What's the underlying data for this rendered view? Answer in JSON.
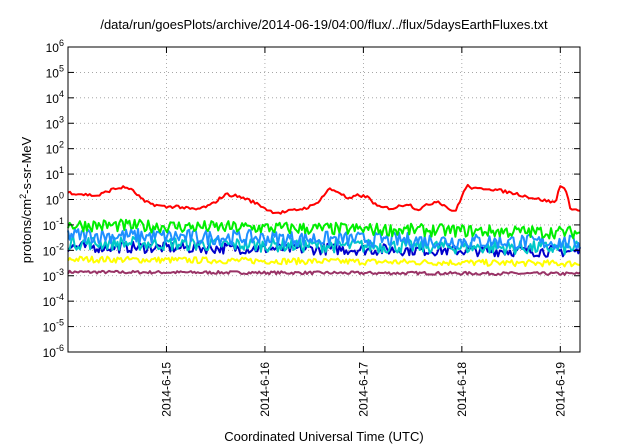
{
  "chart_data": {
    "type": "line",
    "title": "/data/run/goesPlots/archive/2014-06-19/04:00/flux/../flux/5daysEarthFluxes.txt",
    "xlabel": "Coordinated Universal Time (UTC)",
    "ylabel_parts": {
      "pre": "protons/cm",
      "sup": "2",
      "post": "-s-sr-MeV"
    },
    "y_scale": "log",
    "ylim": [
      1e-06,
      1000000.0
    ],
    "y_ticks": [
      {
        "base": "10",
        "exp": "-6",
        "value": 1e-06
      },
      {
        "base": "10",
        "exp": "-5",
        "value": 1e-05
      },
      {
        "base": "10",
        "exp": "-4",
        "value": 0.0001
      },
      {
        "base": "10",
        "exp": "-3",
        "value": 0.001
      },
      {
        "base": "10",
        "exp": "-2",
        "value": 0.01
      },
      {
        "base": "10",
        "exp": "-1",
        "value": 0.1
      },
      {
        "base": "10",
        "exp": "0",
        "value": 1
      },
      {
        "base": "10",
        "exp": "1",
        "value": 10.0
      },
      {
        "base": "10",
        "exp": "2",
        "value": 100.0
      },
      {
        "base": "10",
        "exp": "3",
        "value": 1000.0
      },
      {
        "base": "10",
        "exp": "4",
        "value": 10000.0
      },
      {
        "base": "10",
        "exp": "5",
        "value": 100000.0
      },
      {
        "base": "10",
        "exp": "6",
        "value": 1000000.0
      }
    ],
    "x_range_days": [
      14.0,
      19.2
    ],
    "x_ticks": [
      {
        "label": "2014-6-15",
        "day": 15
      },
      {
        "label": "2014-6-16",
        "day": 16
      },
      {
        "label": "2014-6-17",
        "day": 17
      },
      {
        "label": "2014-6-18",
        "day": 18
      },
      {
        "label": "2014-6-19",
        "day": 19
      }
    ],
    "grid": true,
    "series": [
      {
        "color": "#ff0000",
        "width": 2,
        "x": [
          14.0,
          14.15,
          14.3,
          14.45,
          14.55,
          14.62,
          14.7,
          14.78,
          14.9,
          15.0,
          15.1,
          15.2,
          15.3,
          15.45,
          15.6,
          15.7,
          15.8,
          15.95,
          16.05,
          16.15,
          16.25,
          16.4,
          16.5,
          16.58,
          16.65,
          16.75,
          16.85,
          16.95,
          17.05,
          17.15,
          17.3,
          17.45,
          17.55,
          17.65,
          17.75,
          17.85,
          17.93,
          17.96,
          18.05,
          18.15,
          18.25,
          18.4,
          18.55,
          18.7,
          18.85,
          18.95,
          19.0,
          19.05,
          19.1,
          19.15,
          19.2
        ],
        "y": [
          1.9,
          1.6,
          1.4,
          2.5,
          3.0,
          2.8,
          1.6,
          0.8,
          0.6,
          0.5,
          0.55,
          0.45,
          0.4,
          0.6,
          1.6,
          1.4,
          1.1,
          0.6,
          0.35,
          0.3,
          0.35,
          0.45,
          0.6,
          1.2,
          2.6,
          2.0,
          1.0,
          1.5,
          1.2,
          0.5,
          0.45,
          0.7,
          0.4,
          0.6,
          0.9,
          0.5,
          0.3,
          0.6,
          3.5,
          2.5,
          2.8,
          2.2,
          1.7,
          1.2,
          0.9,
          0.75,
          3.8,
          2.5,
          0.5,
          0.4,
          0.35
        ]
      },
      {
        "color": "#00ee00",
        "width": 2,
        "x": [
          14.0,
          19.2
        ],
        "y": [
          0.1,
          0.05
        ],
        "noise": 0.5
      },
      {
        "color": "#1e90ff",
        "width": 2,
        "x": [
          14.0,
          19.2
        ],
        "y": [
          0.04,
          0.02
        ],
        "noise": 0.6
      },
      {
        "color": "#00c8c8",
        "width": 2,
        "x": [
          14.0,
          19.2
        ],
        "y": [
          0.02,
          0.012
        ],
        "noise": 0.55
      },
      {
        "color": "#0000cc",
        "width": 2,
        "x": [
          14.0,
          19.2
        ],
        "y": [
          0.014,
          0.009
        ],
        "noise": 0.45
      },
      {
        "color": "#ffff00",
        "width": 2,
        "x": [
          14.0,
          19.2
        ],
        "y": [
          0.0045,
          0.003
        ],
        "noise": 0.25
      },
      {
        "color": "#993366",
        "width": 2,
        "x": [
          14.0,
          19.2
        ],
        "y": [
          0.0014,
          0.0012
        ],
        "noise": 0.12
      }
    ]
  }
}
